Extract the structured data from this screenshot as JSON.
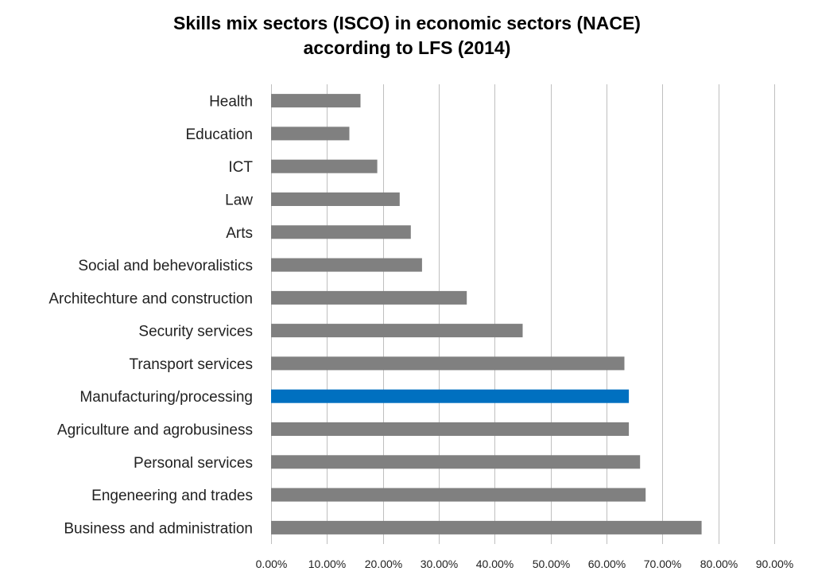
{
  "chart_data": {
    "type": "bar",
    "orientation": "horizontal",
    "title_line1": "Skills mix sectors (ISCO) in economic sectors (NACE)",
    "title_line2": "according to LFS (2014)",
    "xlabel": "",
    "ylabel": "",
    "xlim": [
      0,
      0.9
    ],
    "xticks": [
      "0.00%",
      "10.00%",
      "20.00%",
      "30.00%",
      "40.00%",
      "50.00%",
      "60.00%",
      "70.00%",
      "80.00%",
      "90.00%"
    ],
    "grid": "vertical",
    "legend": "none",
    "colors": {
      "default": "#808080",
      "highlight": "#0070C0",
      "grid": "#bfbfbf"
    },
    "categories": [
      "Health",
      "Education",
      "ICT",
      "Law",
      "Arts",
      "Social and behevoralistics",
      "Architechture and construction",
      "Security services",
      "Transport services",
      "Manufacturing/processing",
      "Agriculture and agrobusiness",
      "Personal services",
      "Engeneering and trades",
      "Business and administration"
    ],
    "values": [
      0.16,
      0.14,
      0.19,
      0.23,
      0.25,
      0.27,
      0.35,
      0.45,
      0.632,
      0.64,
      0.64,
      0.66,
      0.67,
      0.77
    ],
    "highlighted_category": "Manufacturing/processing"
  }
}
